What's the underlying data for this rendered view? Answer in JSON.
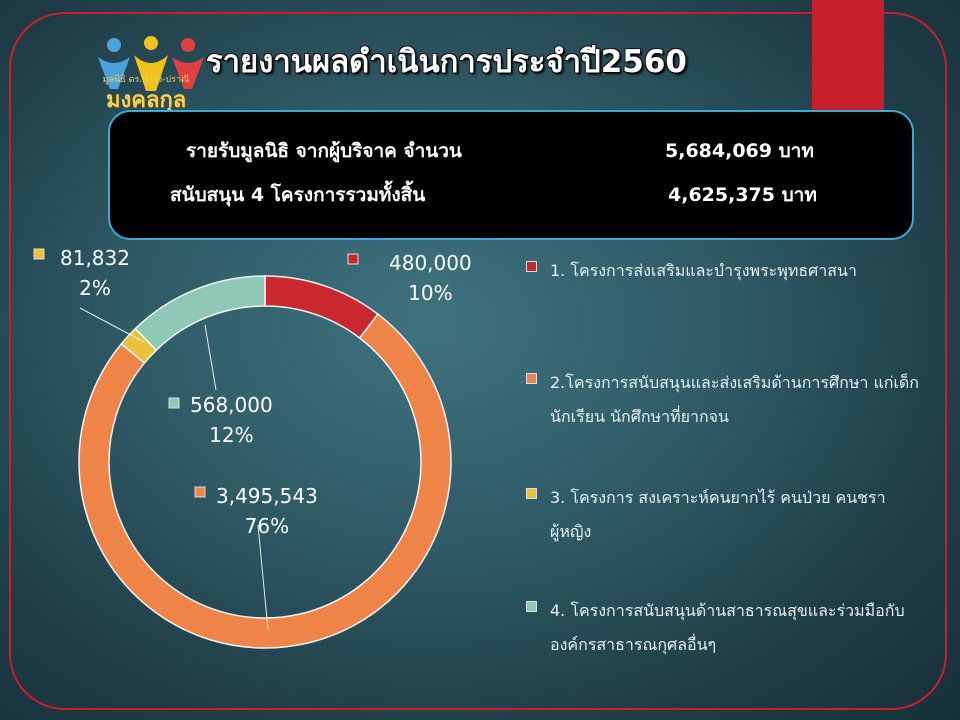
{
  "title": "รายงานผลดำเนินการประจำปี2560",
  "logo": {
    "icon": "three-people-logo-icon",
    "caption": "มูลนิธิ ดร.บำรุง-ปราณี",
    "brand": "มงคลกุล"
  },
  "summary": {
    "row1_label": "รายรับมูลนิธิ จากผู้บริจาค จำนวน",
    "row1_value": "5,684,069 บาท",
    "row2_label": "สนับสนุน 4 โครงการรวมทั้งสิ้น",
    "row2_value": "4,625,375 บาท"
  },
  "colors": {
    "accent_red": "#c8202a",
    "box_border": "#3aa9d8",
    "slice1": "#c9282e",
    "slice2": "#ee8448",
    "slice3": "#e8c23a",
    "slice4": "#8ec9b6"
  },
  "chart_data": {
    "type": "pie",
    "style": "doughnut",
    "legend": "right",
    "slices": [
      {
        "label": "1. โครงการส่งเสริมและบำรุงพระพุทธศาสนา",
        "value": 480000,
        "value_label": "480,000",
        "percent_label": "10%",
        "color": "#c9282e"
      },
      {
        "label": "2.โครงการสนับสนุนและส่งเสริมด้านการศึกษา แก่เด็ก นักเรียน นักศึกษาที่ยากจน",
        "value": 3495543,
        "value_label": "3,495,543",
        "percent_label": "76%",
        "color": "#ee8448"
      },
      {
        "label": "3. โครงการ สงเคราะห์คนยากไร้ คนป่วย คนชรา ผู้หญิง",
        "value": 81832,
        "value_label": "81,832",
        "percent_label": "2%",
        "color": "#e8c23a"
      },
      {
        "label": "4. โครงการสนับสนุนด้านสาธารณสุขและร่วมมือกับองค์กรสาธารณกุศลอื่นๆ",
        "value": 568000,
        "value_label": "568,000",
        "percent_label": "12%",
        "color": "#8ec9b6"
      }
    ]
  }
}
